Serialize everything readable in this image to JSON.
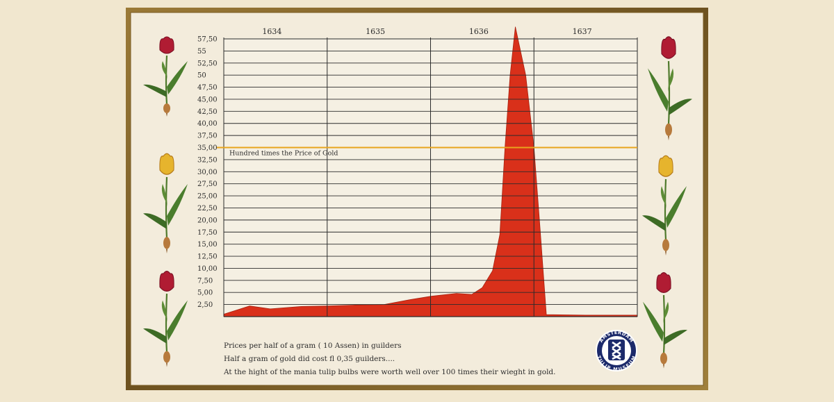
{
  "chart_data": {
    "type": "area",
    "title": "",
    "xlabel": "",
    "ylabel": "",
    "x_tick_labels": [
      "1634",
      "1635",
      "1636",
      "1637"
    ],
    "y_tick_labels": [
      "2,50",
      "5,00",
      "7,50",
      "10,00",
      "12,50",
      "15,00",
      "17,50",
      "20,00",
      "22,50",
      "25,00",
      "27,50",
      "30,00",
      "32,50",
      "35,00",
      "37,50",
      "40,00",
      "42,50",
      "45,00",
      "47,50",
      "50",
      "52,50",
      "55",
      "57,50"
    ],
    "ylim": [
      0,
      60
    ],
    "xlim": [
      1634.0,
      1638.0
    ],
    "grid": true,
    "series": [
      {
        "color": "#d9301a",
        "x": [
          1634.0,
          1634.25,
          1634.45,
          1634.75,
          1635.0,
          1635.3,
          1635.55,
          1635.8,
          1636.0,
          1636.25,
          1636.4,
          1636.5,
          1636.6,
          1636.67,
          1636.72,
          1636.77,
          1636.82,
          1636.92,
          1637.0,
          1637.06,
          1637.12,
          1637.5,
          1638.0
        ],
        "y": [
          0.5,
          2.2,
          1.6,
          2.1,
          2.2,
          2.4,
          2.5,
          3.5,
          4.2,
          4.8,
          4.6,
          6.0,
          9.5,
          17.0,
          35.0,
          50.0,
          60.0,
          50.0,
          35.0,
          18.0,
          0.4,
          0.3,
          0.3
        ]
      }
    ],
    "reference_line": {
      "value": 35.0,
      "label": "Hundred times the Price of Gold",
      "color": "#e8a51d"
    }
  },
  "caption": {
    "line1": "Prices per half of a gram ( 10 Assen) in guilders",
    "line2": "Half a gram of gold did cost  fl 0,35 guilders....",
    "line3": "At the hight of the mania tulip bulbs were worth well over 100 times their wieght in gold."
  },
  "badge": {
    "top": "AMSTERDAM",
    "bottom": "TULIP MUSEUM",
    "icon": "amsterdam-crosses-icon"
  },
  "decorations": {
    "left": [
      "red-tulip-icon",
      "yellow-tulip-icon",
      "red-tulip-icon"
    ],
    "right": [
      "red-tulip-icon",
      "yellow-tulip-icon",
      "red-tulip-icon"
    ]
  },
  "colors": {
    "frame": "#8b6a2b",
    "paper": "#f3ecdc",
    "area": "#d9301a",
    "grid": "#2b2b2b",
    "reference": "#e8a51d",
    "badge": "#1c2a6b"
  }
}
